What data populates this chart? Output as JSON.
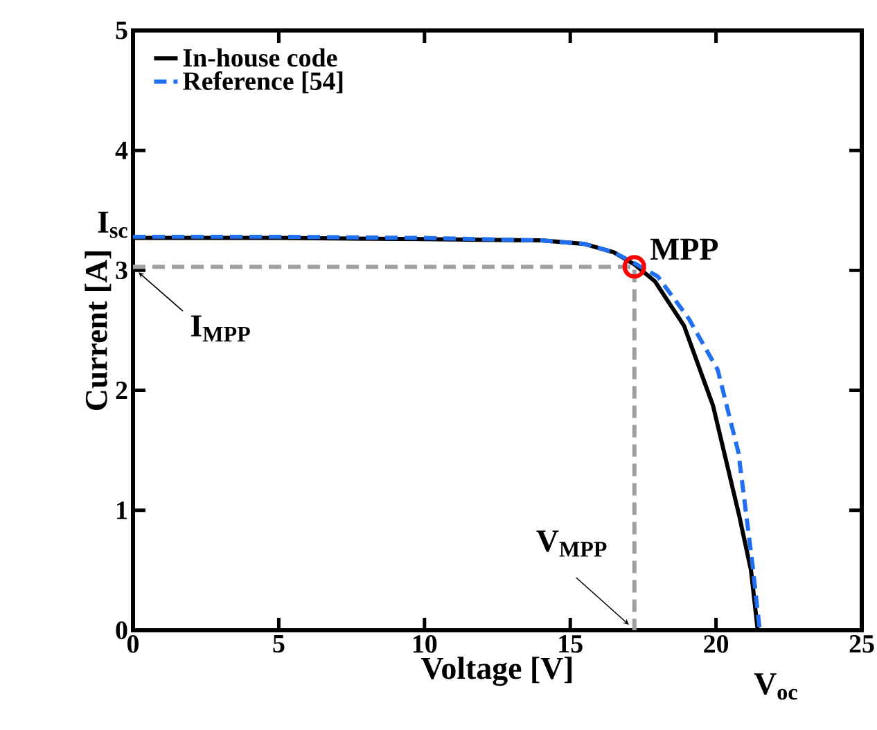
{
  "chart_data": {
    "type": "line",
    "xlabel": "Voltage [V]",
    "ylabel": "Current [A]",
    "xlim": [
      0,
      25
    ],
    "ylim": [
      0,
      5
    ],
    "xticks": [
      0,
      5,
      10,
      15,
      20,
      25
    ],
    "yticks": [
      0,
      1,
      2,
      3,
      4,
      5
    ],
    "legend": "top left",
    "line_style": "solid",
    "series": [
      {
        "name": "In-house code",
        "color": "#000000",
        "x": [
          0,
          5,
          10,
          14,
          15.5,
          16.5,
          17.2,
          17.9,
          18.9,
          19.9,
          20.8,
          21.2,
          21.43
        ],
        "values": [
          3.27,
          3.27,
          3.26,
          3.25,
          3.22,
          3.15,
          3.05,
          2.91,
          2.54,
          1.87,
          0.95,
          0.5,
          0
        ]
      },
      {
        "name": "Reference [54]",
        "color": "#1f6ff0",
        "line_style": "dashed",
        "x": [
          0,
          5,
          10,
          14,
          15.5,
          16.5,
          17.2,
          18,
          19.06,
          20.06,
          20.77,
          21.25,
          21.5
        ],
        "values": [
          3.28,
          3.28,
          3.27,
          3.25,
          3.22,
          3.15,
          3.06,
          2.95,
          2.6,
          2.17,
          1.48,
          0.55,
          0
        ]
      },
      {
        "color": "#a0a0a0",
        "line_style": "dashed",
        "x": [
          0,
          17.2,
          17.2
        ],
        "values": [
          3.03,
          3.03,
          0
        ]
      },
      {
        "type": "scatter",
        "color": "#ff0000",
        "marker": "circle",
        "x": [
          17.2
        ],
        "values": [
          3.03
        ]
      }
    ],
    "annotations": [
      {
        "text": "I$_{sc}$",
        "x": 0,
        "y": 3.28
      },
      {
        "text": "MPP",
        "x": 17.2,
        "y": 3.03
      },
      {
        "text": "I$_{MPP}$",
        "x": 0,
        "y": 3.03
      },
      {
        "text": "V$_{MPP}$",
        "x": 17.2,
        "y": 0
      },
      {
        "text": "V$_{oc}$",
        "x": 21.43,
        "y": 0
      }
    ]
  }
}
